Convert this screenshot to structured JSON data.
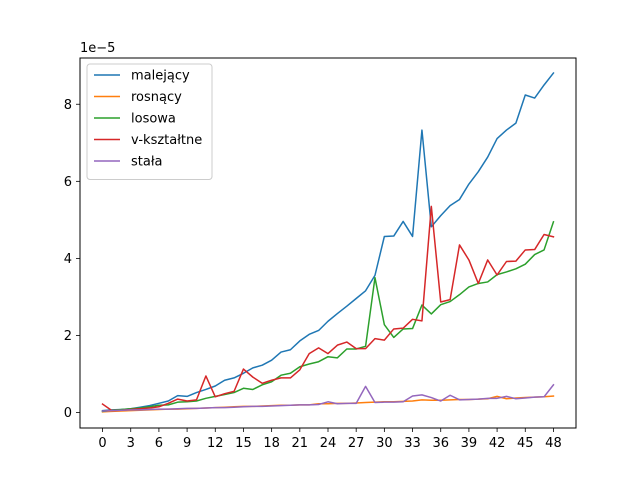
{
  "chart_data": {
    "type": "line",
    "offset_label": "1e−5",
    "x": [
      0,
      1,
      2,
      3,
      4,
      5,
      6,
      7,
      8,
      9,
      10,
      11,
      12,
      13,
      14,
      15,
      16,
      17,
      18,
      19,
      20,
      21,
      22,
      23,
      24,
      25,
      26,
      27,
      28,
      29,
      30,
      31,
      32,
      33,
      34,
      35,
      36,
      37,
      38,
      39,
      40,
      41,
      42,
      43,
      44,
      45,
      46,
      47,
      48
    ],
    "xticks": [
      0,
      3,
      6,
      9,
      12,
      15,
      18,
      21,
      24,
      27,
      30,
      33,
      36,
      39,
      42,
      45,
      48
    ],
    "xtick_labels": [
      "0",
      "3",
      "6",
      "9",
      "12",
      "15",
      "18",
      "21",
      "24",
      "27",
      "30",
      "33",
      "36",
      "39",
      "42",
      "45",
      "48"
    ],
    "yticks": [
      0,
      2,
      4,
      6,
      8
    ],
    "ytick_labels": [
      "0",
      "2",
      "4",
      "6",
      "8"
    ],
    "xlim": [
      -2.4,
      50.4
    ],
    "ylim": [
      -0.4,
      9.2
    ],
    "legend_position": "upper-left",
    "series": [
      {
        "name": "malejący",
        "color": "#1f77b4",
        "values": [
          0.05,
          0.07,
          0.08,
          0.1,
          0.14,
          0.18,
          0.24,
          0.3,
          0.44,
          0.42,
          0.52,
          0.6,
          0.69,
          0.84,
          0.9,
          1.02,
          1.16,
          1.23,
          1.36,
          1.57,
          1.63,
          1.86,
          2.03,
          2.13,
          2.37,
          2.57,
          2.76,
          2.96,
          3.16,
          3.56,
          4.57,
          4.58,
          4.96,
          4.57,
          7.33,
          4.82,
          5.11,
          5.37,
          5.53,
          5.93,
          6.25,
          6.63,
          7.11,
          7.33,
          7.51,
          8.24,
          8.16,
          8.5,
          8.81
        ]
      },
      {
        "name": "rosnący",
        "color": "#ff7f0e",
        "values": [
          0.02,
          0.03,
          0.04,
          0.05,
          0.06,
          0.07,
          0.08,
          0.09,
          0.09,
          0.1,
          0.11,
          0.12,
          0.13,
          0.14,
          0.15,
          0.16,
          0.16,
          0.17,
          0.18,
          0.19,
          0.19,
          0.2,
          0.2,
          0.23,
          0.23,
          0.24,
          0.24,
          0.25,
          0.26,
          0.27,
          0.28,
          0.28,
          0.29,
          0.3,
          0.33,
          0.32,
          0.32,
          0.33,
          0.34,
          0.34,
          0.35,
          0.36,
          0.42,
          0.36,
          0.38,
          0.39,
          0.4,
          0.41,
          0.43
        ]
      },
      {
        "name": "losowa",
        "color": "#2ca02c",
        "values": [
          0.03,
          0.06,
          0.08,
          0.1,
          0.12,
          0.15,
          0.19,
          0.2,
          0.27,
          0.28,
          0.3,
          0.37,
          0.42,
          0.47,
          0.52,
          0.63,
          0.6,
          0.72,
          0.8,
          0.97,
          1.02,
          1.19,
          1.26,
          1.32,
          1.45,
          1.42,
          1.65,
          1.65,
          1.72,
          3.5,
          2.28,
          1.95,
          2.17,
          2.18,
          2.79,
          2.56,
          2.8,
          2.88,
          3.06,
          3.26,
          3.35,
          3.39,
          3.58,
          3.65,
          3.73,
          3.85,
          4.1,
          4.22,
          4.95
        ]
      },
      {
        "name": "v-kształtne",
        "color": "#d62728",
        "values": [
          0.22,
          0.05,
          0.06,
          0.08,
          0.1,
          0.12,
          0.15,
          0.24,
          0.35,
          0.3,
          0.33,
          0.95,
          0.41,
          0.49,
          0.55,
          1.13,
          0.92,
          0.76,
          0.84,
          0.9,
          0.9,
          1.11,
          1.53,
          1.68,
          1.53,
          1.75,
          1.83,
          1.66,
          1.66,
          1.92,
          1.88,
          2.17,
          2.19,
          2.42,
          2.38,
          5.35,
          2.87,
          2.93,
          4.35,
          3.96,
          3.35,
          3.96,
          3.57,
          3.92,
          3.93,
          4.22,
          4.23,
          4.62,
          4.56
        ]
      },
      {
        "name": "stała",
        "color": "#9467bd",
        "values": [
          0.04,
          0.05,
          0.06,
          0.07,
          0.07,
          0.08,
          0.09,
          0.09,
          0.1,
          0.11,
          0.11,
          0.12,
          0.13,
          0.13,
          0.14,
          0.15,
          0.16,
          0.16,
          0.17,
          0.18,
          0.19,
          0.2,
          0.2,
          0.21,
          0.28,
          0.23,
          0.24,
          0.24,
          0.68,
          0.26,
          0.27,
          0.27,
          0.28,
          0.43,
          0.46,
          0.39,
          0.3,
          0.45,
          0.33,
          0.34,
          0.35,
          0.37,
          0.37,
          0.42,
          0.36,
          0.38,
          0.4,
          0.41,
          0.72
        ]
      }
    ]
  }
}
